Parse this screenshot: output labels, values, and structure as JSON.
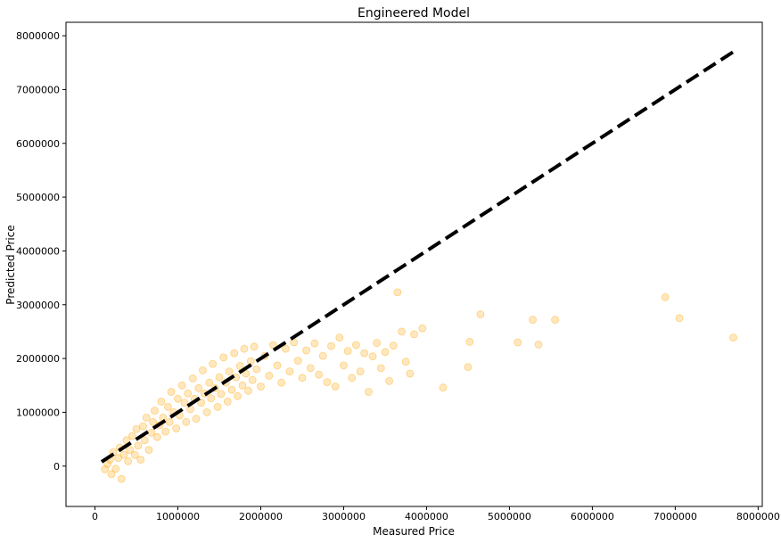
{
  "chart_data": {
    "type": "scatter",
    "title": "Engineered Model",
    "xlabel": "Measured Price",
    "ylabel": "Predicted Price",
    "xlim": [
      -350000,
      8050000
    ],
    "ylim": [
      -750000,
      8250000
    ],
    "x_ticks": [
      0,
      1000000,
      2000000,
      3000000,
      4000000,
      5000000,
      6000000,
      7000000,
      8000000
    ],
    "x_tick_labels": [
      "0",
      "1000000",
      "2000000",
      "3000000",
      "4000000",
      "5000000",
      "6000000",
      "7000000",
      "8000000"
    ],
    "y_ticks": [
      0,
      1000000,
      2000000,
      3000000,
      4000000,
      5000000,
      6000000,
      7000000,
      8000000
    ],
    "y_tick_labels": [
      "0",
      "1000000",
      "2000000",
      "3000000",
      "4000000",
      "5000000",
      "6000000",
      "7000000",
      "8000000"
    ],
    "grid": false,
    "point_color": "#FFA500",
    "point_alpha": 0.25,
    "line_color": "#000000",
    "reference_line": {
      "x": [
        80000,
        7700000
      ],
      "y": [
        80000,
        7700000
      ],
      "style": "dashed"
    },
    "series": [
      {
        "points": [
          [
            120000,
            -60000
          ],
          [
            150000,
            40000
          ],
          [
            180000,
            120000
          ],
          [
            200000,
            -150000
          ],
          [
            220000,
            260000
          ],
          [
            250000,
            -50000
          ],
          [
            280000,
            150000
          ],
          [
            300000,
            340000
          ],
          [
            320000,
            -240000
          ],
          [
            350000,
            210000
          ],
          [
            380000,
            480000
          ],
          [
            400000,
            90000
          ],
          [
            420000,
            300000
          ],
          [
            450000,
            560000
          ],
          [
            480000,
            210000
          ],
          [
            500000,
            690000
          ],
          [
            520000,
            380000
          ],
          [
            550000,
            120000
          ],
          [
            580000,
            740000
          ],
          [
            600000,
            480000
          ],
          [
            620000,
            900000
          ],
          [
            650000,
            300000
          ],
          [
            680000,
            620000
          ],
          [
            700000,
            820000
          ],
          [
            720000,
            1030000
          ],
          [
            750000,
            540000
          ],
          [
            780000,
            760000
          ],
          [
            800000,
            1200000
          ],
          [
            820000,
            900000
          ],
          [
            850000,
            640000
          ],
          [
            880000,
            1100000
          ],
          [
            900000,
            820000
          ],
          [
            920000,
            1380000
          ],
          [
            950000,
            1000000
          ],
          [
            980000,
            700000
          ],
          [
            1000000,
            1250000
          ],
          [
            1020000,
            940000
          ],
          [
            1050000,
            1500000
          ],
          [
            1080000,
            1180000
          ],
          [
            1100000,
            820000
          ],
          [
            1120000,
            1350000
          ],
          [
            1150000,
            1060000
          ],
          [
            1180000,
            1630000
          ],
          [
            1200000,
            1250000
          ],
          [
            1220000,
            880000
          ],
          [
            1250000,
            1450000
          ],
          [
            1280000,
            1180000
          ],
          [
            1300000,
            1780000
          ],
          [
            1320000,
            1350000
          ],
          [
            1350000,
            1000000
          ],
          [
            1380000,
            1550000
          ],
          [
            1400000,
            1260000
          ],
          [
            1420000,
            1900000
          ],
          [
            1450000,
            1450000
          ],
          [
            1480000,
            1100000
          ],
          [
            1500000,
            1650000
          ],
          [
            1520000,
            1340000
          ],
          [
            1550000,
            2020000
          ],
          [
            1580000,
            1550000
          ],
          [
            1600000,
            1200000
          ],
          [
            1620000,
            1760000
          ],
          [
            1650000,
            1420000
          ],
          [
            1680000,
            2100000
          ],
          [
            1700000,
            1650000
          ],
          [
            1720000,
            1300000
          ],
          [
            1750000,
            1860000
          ],
          [
            1780000,
            1500000
          ],
          [
            1800000,
            2180000
          ],
          [
            1820000,
            1720000
          ],
          [
            1850000,
            1400000
          ],
          [
            1880000,
            1950000
          ],
          [
            1900000,
            1600000
          ],
          [
            1920000,
            2220000
          ],
          [
            1950000,
            1800000
          ],
          [
            2000000,
            1480000
          ],
          [
            2050000,
            2050000
          ],
          [
            2100000,
            1680000
          ],
          [
            2150000,
            2250000
          ],
          [
            2200000,
            1870000
          ],
          [
            2250000,
            1550000
          ],
          [
            2300000,
            2180000
          ],
          [
            2350000,
            1760000
          ],
          [
            2400000,
            2300000
          ],
          [
            2450000,
            1960000
          ],
          [
            2500000,
            1640000
          ],
          [
            2550000,
            2150000
          ],
          [
            2600000,
            1820000
          ],
          [
            2650000,
            2280000
          ],
          [
            2700000,
            1700000
          ],
          [
            2750000,
            2050000
          ],
          [
            2800000,
            1560000
          ],
          [
            2850000,
            2230000
          ],
          [
            2900000,
            1480000
          ],
          [
            2950000,
            2390000
          ],
          [
            3000000,
            1870000
          ],
          [
            3050000,
            2140000
          ],
          [
            3100000,
            1640000
          ],
          [
            3150000,
            2250000
          ],
          [
            3200000,
            1760000
          ],
          [
            3250000,
            2100000
          ],
          [
            3300000,
            1380000
          ],
          [
            3350000,
            2040000
          ],
          [
            3400000,
            2290000
          ],
          [
            3450000,
            1820000
          ],
          [
            3500000,
            2120000
          ],
          [
            3550000,
            1580000
          ],
          [
            3600000,
            2240000
          ],
          [
            3650000,
            3230000
          ],
          [
            3700000,
            2500000
          ],
          [
            3750000,
            1940000
          ],
          [
            3800000,
            1720000
          ],
          [
            3850000,
            2450000
          ],
          [
            3950000,
            2560000
          ],
          [
            4200000,
            1460000
          ],
          [
            4500000,
            1840000
          ],
          [
            4520000,
            2310000
          ],
          [
            4650000,
            2820000
          ],
          [
            5100000,
            2300000
          ],
          [
            5280000,
            2720000
          ],
          [
            5350000,
            2260000
          ],
          [
            5550000,
            2720000
          ],
          [
            6880000,
            3140000
          ],
          [
            7050000,
            2750000
          ],
          [
            7700000,
            2390000
          ]
        ]
      }
    ]
  }
}
